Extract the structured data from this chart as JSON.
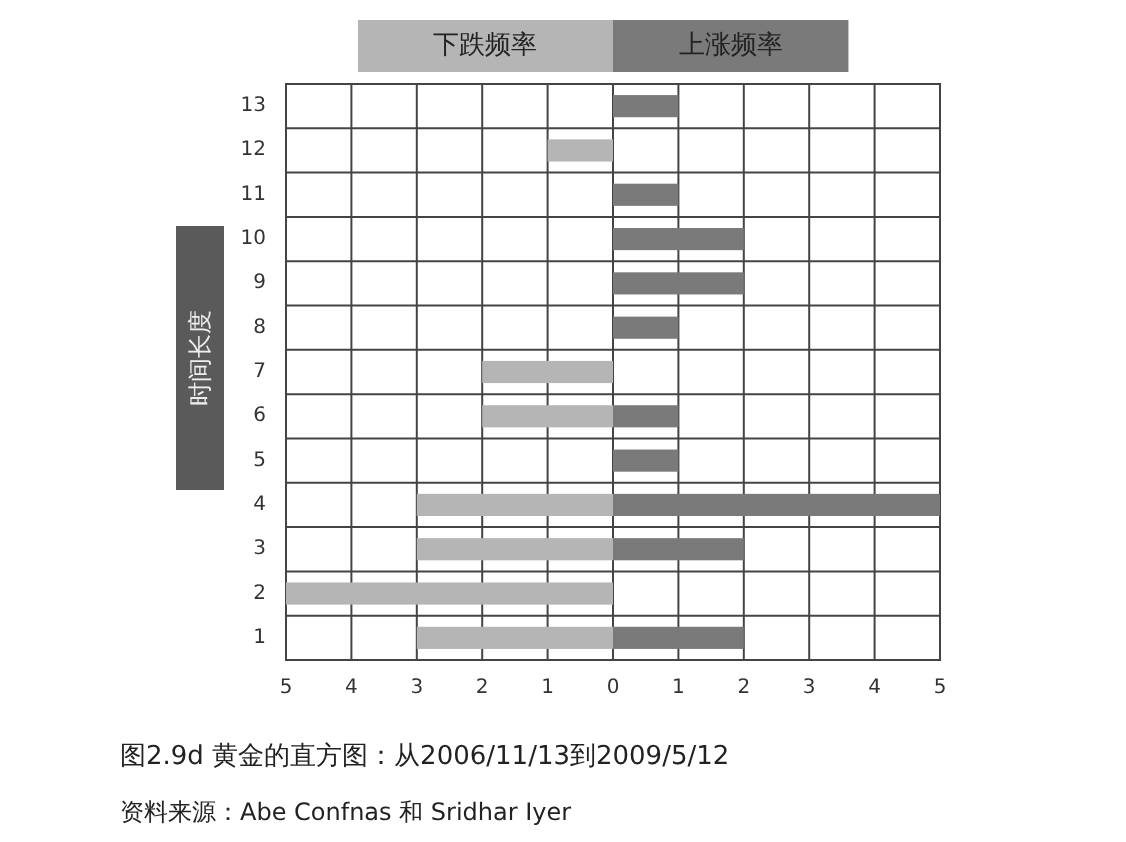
{
  "chart_data": {
    "type": "bar",
    "orientation": "horizontal",
    "title": "图2.9d 黄金的直方图：从2006/11/13到2009/5/12",
    "ylabel": "时间长度",
    "categories": [
      "13",
      "12",
      "11",
      "10",
      "9",
      "8",
      "7",
      "6",
      "5",
      "4",
      "3",
      "2",
      "1"
    ],
    "series": [
      {
        "name": "下跌频率",
        "color": "#b5b5b5",
        "values": [
          null,
          -1,
          null,
          null,
          null,
          null,
          -2,
          -2,
          null,
          -3,
          -3,
          -5,
          -3
        ]
      },
      {
        "name": "上涨频率",
        "color": "#7a7a7a",
        "values": [
          1,
          null,
          1,
          2,
          2,
          1,
          null,
          1,
          1,
          5,
          2,
          null,
          2
        ]
      }
    ],
    "xlim": [
      -5,
      5
    ],
    "xticks": [
      {
        "value": -5,
        "label": "5"
      },
      {
        "value": -4,
        "label": "4"
      },
      {
        "value": -3,
        "label": "3"
      },
      {
        "value": -2,
        "label": "2"
      },
      {
        "value": -1,
        "label": "1"
      },
      0,
      1,
      2,
      3,
      4,
      5
    ],
    "grid": true,
    "legend": "top",
    "annotations": [
      "资料来源：Abe Confnas 和 Sridhar Iyer"
    ]
  }
}
